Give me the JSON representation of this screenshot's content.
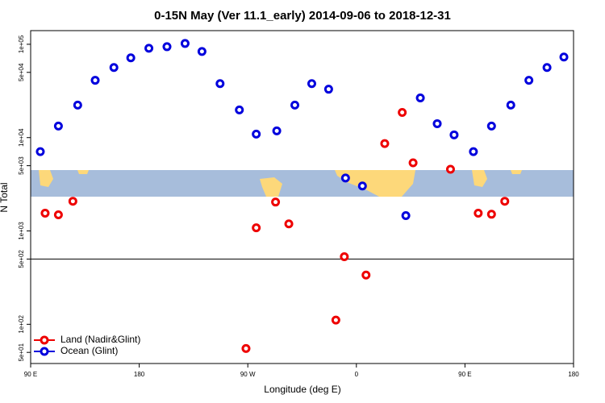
{
  "chart_data": {
    "type": "scatter",
    "title": "0-15N May (Ver 11.1_early)   2014-09-06 to 2018-12-31",
    "x_label": "Longitude (deg E)",
    "y_label": "N Total",
    "log_y": true,
    "xlim": [
      90,
      540
    ],
    "xticks": [
      {
        "value": 90,
        "label": "90 E"
      },
      {
        "value": 180,
        "label": "180"
      },
      {
        "value": 270,
        "label": "90 W"
      },
      {
        "value": 360,
        "label": "0"
      },
      {
        "value": 450,
        "label": "90 E"
      },
      {
        "value": 540,
        "label": "180"
      }
    ],
    "ylim": [
      38,
      140000
    ],
    "yticks": [
      {
        "value": 50,
        "label": "5e+01"
      },
      {
        "value": 100,
        "label": "1e+02"
      },
      {
        "value": 500,
        "label": "5e+02"
      },
      {
        "value": 1000,
        "label": "1e+03"
      },
      {
        "value": 5000,
        "label": "5e+03"
      },
      {
        "value": 10000,
        "label": "1e+04"
      },
      {
        "value": 50000,
        "label": "5e+04"
      },
      {
        "value": 100000,
        "label": "1e+05"
      }
    ],
    "reference_line": 500,
    "legend": "bottom-left",
    "series": [
      {
        "name": "Land (Nadir&Glint)",
        "color": "#ee0000",
        "x": [
          102,
          113,
          125,
          268.5,
          277,
          293,
          304,
          343,
          350,
          368,
          383.5,
          398,
          407,
          438,
          461,
          472,
          483
        ],
        "values": [
          1550,
          1490,
          2080,
          55,
          1080,
          2040,
          1190,
          111,
          530,
          337,
          8630,
          18600,
          5370,
          4580,
          1550,
          1510,
          2080
        ]
      },
      {
        "name": "Ocean (Glint)",
        "color": "#0000dd",
        "x": [
          98,
          113,
          129,
          143.5,
          159,
          173,
          188,
          203,
          218,
          232,
          247,
          263,
          277,
          294,
          309,
          323,
          337,
          351,
          365,
          401,
          413,
          427,
          441,
          457,
          472,
          488,
          503,
          518,
          532
        ],
        "values": [
          7080,
          13300,
          22300,
          41100,
          56400,
          71500,
          90600,
          94200,
          102000,
          83700,
          37900,
          19800,
          10900,
          11800,
          22300,
          37900,
          33000,
          3690,
          3030,
          1460,
          26600,
          14100,
          10700,
          7080,
          13300,
          22300,
          41100,
          56400,
          73000
        ]
      }
    ]
  }
}
